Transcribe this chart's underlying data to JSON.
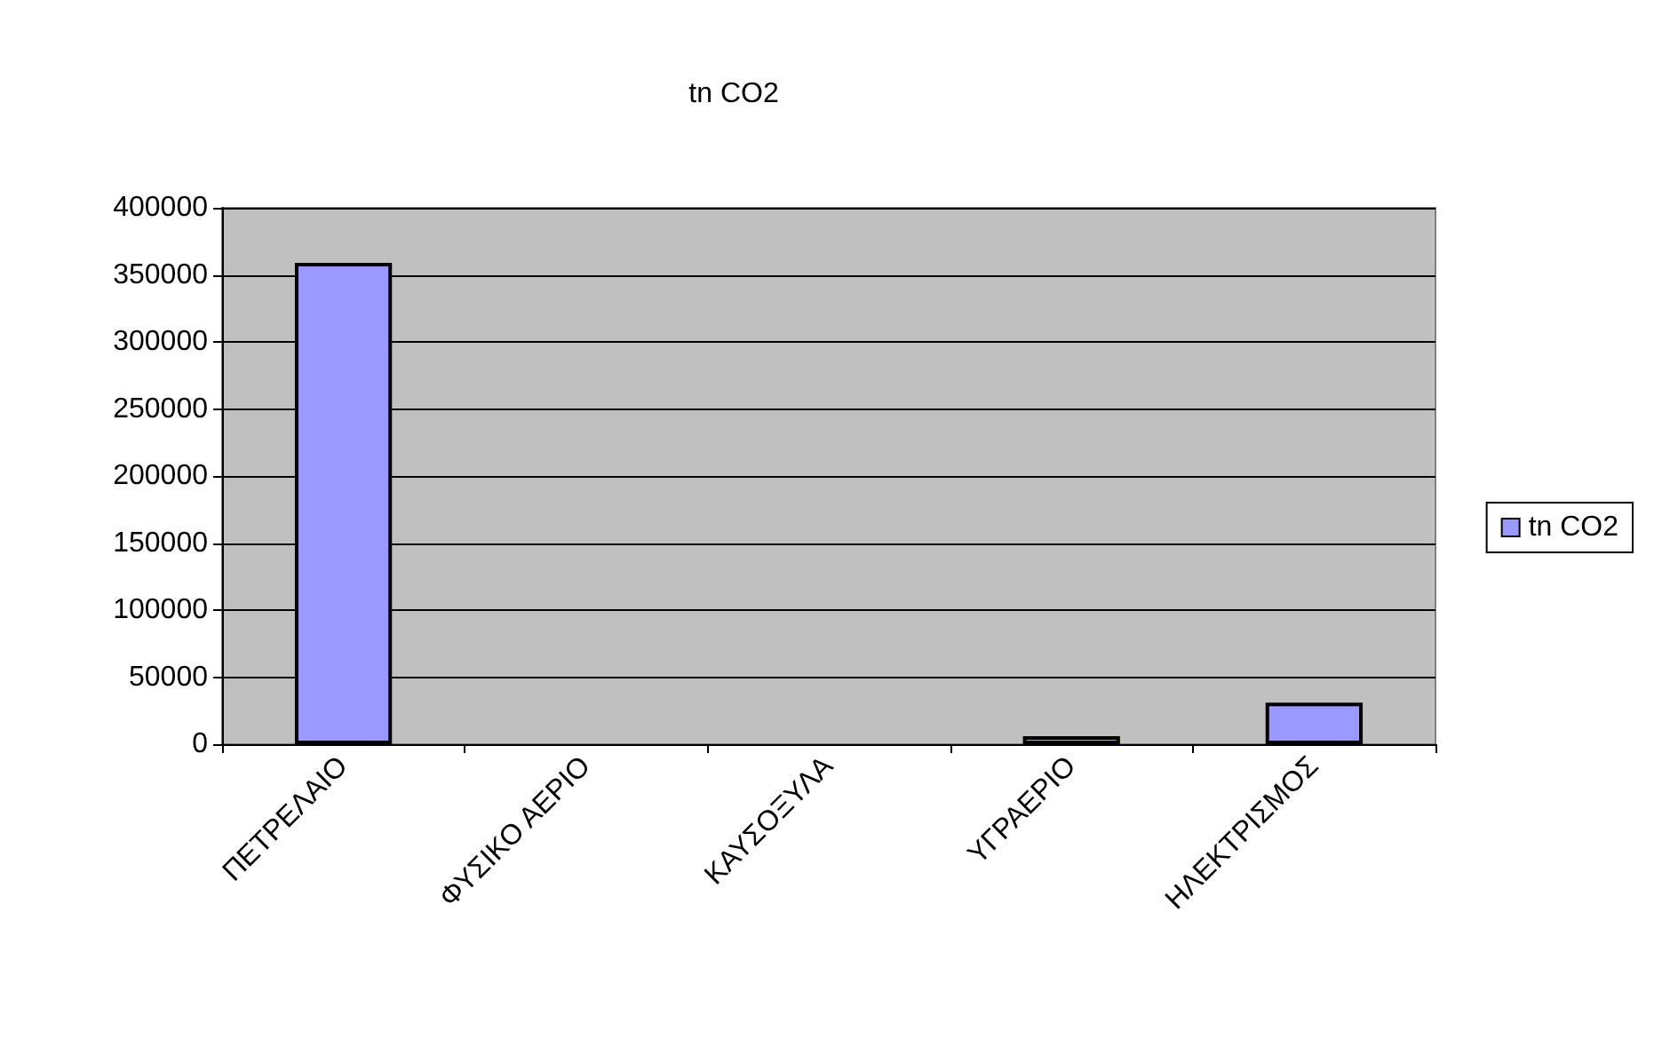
{
  "chart_data": {
    "type": "bar",
    "title": "tn CO2",
    "categories": [
      "ΠΕΤΡΕΛΑΙΟ",
      "ΦΥΣΙΚΟ ΑΕΡΙΟ",
      "ΚΑΥΣΟΞΥΛΑ",
      "ΥΓΡΑΕΡΙΟ",
      "ΗΛΕΚΤΡΙΣΜΟΣ"
    ],
    "series": [
      {
        "name": "tn CO2",
        "color": "#9999ff",
        "values": [
          359000,
          0,
          0,
          6000,
          31000
        ]
      }
    ],
    "ylim": [
      0,
      400000
    ],
    "yticks": [
      0,
      50000,
      100000,
      150000,
      200000,
      250000,
      300000,
      350000,
      400000
    ],
    "grid": "y",
    "legend": "right"
  }
}
